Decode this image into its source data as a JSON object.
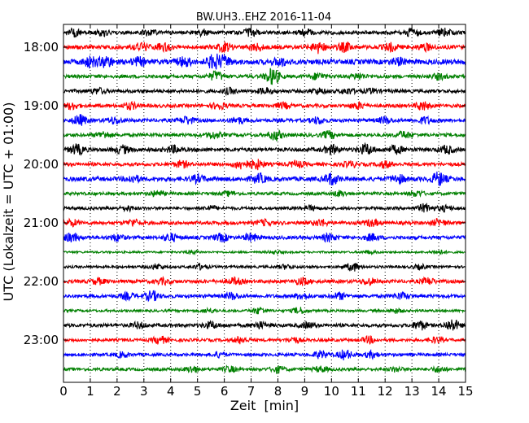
{
  "chart_data": {
    "type": "line",
    "title": "BW.UH3..EHZ 2016-11-04",
    "xlabel": "Zeit  [min]",
    "ylabel": "UTC (Lokalzeit = UTC + 01:00)",
    "xlim": [
      0,
      15
    ],
    "x_ticks": [
      "0",
      "1",
      "2",
      "3",
      "4",
      "5",
      "6",
      "7",
      "8",
      "9",
      "10",
      "11",
      "12",
      "13",
      "14",
      "15"
    ],
    "y_tick_labels": [
      "18:00",
      "19:00",
      "20:00",
      "21:00",
      "22:00",
      "23:00"
    ],
    "grid": "vertical dotted at each minute",
    "trace_colors": [
      "#000000",
      "#ff0000",
      "#0000ff",
      "#008000"
    ],
    "trace_minutes": 15,
    "traces": [
      {
        "start": "17:45",
        "end_min": 15,
        "color_index": 0,
        "base_amp": 0.35,
        "bursts": [
          [
            0.4,
            0.7
          ],
          [
            1.5,
            0.5
          ],
          [
            3.2,
            0.5
          ],
          [
            5.2,
            0.5
          ],
          [
            7.0,
            0.7
          ],
          [
            9.0,
            0.6
          ],
          [
            13.0,
            0.8
          ],
          [
            14.2,
            0.7
          ]
        ]
      },
      {
        "start": "18:00",
        "end_min": 15,
        "color_index": 1,
        "base_amp": 0.4,
        "bursts": [
          [
            2.9,
            0.8
          ],
          [
            3.7,
            0.6
          ],
          [
            6.0,
            0.8
          ],
          [
            7.2,
            0.6
          ],
          [
            9.5,
            1.0
          ],
          [
            10.5,
            0.8
          ],
          [
            12.2,
            0.7
          ],
          [
            13.5,
            0.6
          ]
        ]
      },
      {
        "start": "18:15",
        "end_min": 15,
        "color_index": 2,
        "base_amp": 0.5,
        "bursts": [
          [
            1.0,
            0.9
          ],
          [
            1.6,
            1.0
          ],
          [
            2.8,
            0.7
          ],
          [
            4.5,
            0.8
          ],
          [
            5.6,
            1.2
          ],
          [
            6.0,
            0.9
          ],
          [
            8.1,
            0.7
          ],
          [
            12.5,
            0.6
          ]
        ]
      },
      {
        "start": "18:30",
        "end_min": 15,
        "color_index": 3,
        "base_amp": 0.35,
        "bursts": [
          [
            5.7,
            0.9
          ],
          [
            7.8,
            1.6
          ],
          [
            9.5,
            0.6
          ],
          [
            11.0,
            0.5
          ],
          [
            14.0,
            0.5
          ]
        ]
      },
      {
        "start": "18:45",
        "end_min": 15,
        "color_index": 0,
        "base_amp": 0.35,
        "bursts": [
          [
            1.3,
            0.5
          ],
          [
            6.2,
            0.5
          ],
          [
            7.5,
            0.5
          ],
          [
            9.5,
            0.5
          ],
          [
            10.6,
            0.5
          ],
          [
            11.5,
            0.4
          ]
        ]
      },
      {
        "start": "19:00",
        "end_min": 15,
        "color_index": 1,
        "base_amp": 0.35,
        "bursts": [
          [
            0.3,
            0.6
          ],
          [
            2.5,
            0.6
          ],
          [
            5.8,
            0.6
          ],
          [
            8.2,
            0.5
          ],
          [
            11.0,
            0.6
          ],
          [
            13.4,
            0.8
          ]
        ]
      },
      {
        "start": "19:15",
        "end_min": 15,
        "color_index": 2,
        "base_amp": 0.35,
        "bursts": [
          [
            0.6,
            1.0
          ],
          [
            1.9,
            0.6
          ],
          [
            4.6,
            0.7
          ],
          [
            6.5,
            0.6
          ],
          [
            9.5,
            0.6
          ],
          [
            12.0,
            0.6
          ],
          [
            13.5,
            0.6
          ]
        ]
      },
      {
        "start": "19:30",
        "end_min": 15,
        "color_index": 3,
        "base_amp": 0.35,
        "bursts": [
          [
            1.5,
            0.6
          ],
          [
            5.6,
            0.6
          ],
          [
            7.9,
            0.9
          ],
          [
            9.9,
            0.7
          ],
          [
            12.7,
            0.6
          ]
        ]
      },
      {
        "start": "19:45",
        "end_min": 15,
        "color_index": 0,
        "base_amp": 0.4,
        "bursts": [
          [
            0.5,
            0.9
          ],
          [
            2.2,
            0.7
          ],
          [
            4.1,
            0.6
          ],
          [
            10.0,
            0.8
          ],
          [
            11.3,
            1.0
          ],
          [
            12.4,
            0.7
          ],
          [
            14.3,
            0.7
          ]
        ]
      },
      {
        "start": "20:00",
        "end_min": 15,
        "color_index": 1,
        "base_amp": 0.35,
        "bursts": [
          [
            4.4,
            0.6
          ],
          [
            6.6,
            0.8
          ],
          [
            7.2,
            0.9
          ],
          [
            8.7,
            0.6
          ],
          [
            10.7,
            0.5
          ],
          [
            12.0,
            0.6
          ]
        ]
      },
      {
        "start": "20:15",
        "end_min": 15,
        "color_index": 2,
        "base_amp": 0.45,
        "bursts": [
          [
            2.6,
            0.6
          ],
          [
            5.0,
            0.6
          ],
          [
            7.3,
            0.8
          ],
          [
            10.0,
            1.0
          ],
          [
            12.5,
            0.7
          ],
          [
            14.0,
            1.2
          ]
        ]
      },
      {
        "start": "20:30",
        "end_min": 15,
        "color_index": 3,
        "base_amp": 0.3,
        "bursts": [
          [
            3.5,
            0.5
          ],
          [
            6.2,
            0.4
          ],
          [
            10.3,
            0.5
          ],
          [
            13.2,
            0.5
          ]
        ]
      },
      {
        "start": "20:45",
        "end_min": 15,
        "color_index": 0,
        "base_amp": 0.3,
        "bursts": [
          [
            2.4,
            0.4
          ],
          [
            5.5,
            0.4
          ],
          [
            9.2,
            0.4
          ],
          [
            13.5,
            0.8
          ],
          [
            14.2,
            0.5
          ]
        ]
      },
      {
        "start": "21:00",
        "end_min": 15,
        "color_index": 1,
        "base_amp": 0.35,
        "bursts": [
          [
            0.3,
            0.6
          ],
          [
            2.6,
            0.6
          ],
          [
            7.5,
            0.5
          ],
          [
            9.6,
            0.6
          ],
          [
            11.5,
            0.6
          ],
          [
            14.0,
            0.6
          ]
        ]
      },
      {
        "start": "21:15",
        "end_min": 15,
        "color_index": 2,
        "base_amp": 0.35,
        "bursts": [
          [
            0.3,
            0.8
          ],
          [
            2.0,
            0.6
          ],
          [
            4.0,
            0.7
          ],
          [
            5.9,
            0.7
          ],
          [
            7.0,
            0.7
          ],
          [
            9.9,
            0.7
          ],
          [
            11.5,
            0.6
          ]
        ]
      },
      {
        "start": "21:30",
        "end_min": 15,
        "color_index": 3,
        "base_amp": 0.2,
        "bursts": [
          [
            4.8,
            0.3
          ],
          [
            7.9,
            0.3
          ],
          [
            11.4,
            0.3
          ],
          [
            14.0,
            0.4
          ]
        ]
      },
      {
        "start": "21:45",
        "end_min": 15,
        "color_index": 0,
        "base_amp": 0.25,
        "bursts": [
          [
            3.5,
            0.5
          ],
          [
            5.1,
            0.5
          ],
          [
            8.3,
            0.4
          ],
          [
            10.8,
            0.8
          ],
          [
            13.3,
            0.4
          ]
        ]
      },
      {
        "start": "22:00",
        "end_min": 15,
        "color_index": 1,
        "base_amp": 0.35,
        "bursts": [
          [
            1.3,
            0.5
          ],
          [
            3.7,
            0.5
          ],
          [
            6.4,
            0.6
          ],
          [
            8.9,
            0.6
          ],
          [
            11.4,
            0.6
          ],
          [
            13.6,
            0.6
          ]
        ]
      },
      {
        "start": "22:15",
        "end_min": 15,
        "color_index": 2,
        "base_amp": 0.35,
        "bursts": [
          [
            2.4,
            0.6
          ],
          [
            3.3,
            0.9
          ],
          [
            6.3,
            0.6
          ],
          [
            8.9,
            0.6
          ],
          [
            10.3,
            0.6
          ],
          [
            12.6,
            0.6
          ]
        ]
      },
      {
        "start": "22:30",
        "end_min": 15,
        "color_index": 3,
        "base_amp": 0.25,
        "bursts": [
          [
            5.4,
            0.4
          ],
          [
            7.3,
            0.6
          ],
          [
            8.8,
            0.6
          ],
          [
            12.4,
            0.4
          ]
        ]
      },
      {
        "start": "22:45",
        "end_min": 15,
        "color_index": 0,
        "base_amp": 0.35,
        "bursts": [
          [
            2.8,
            0.5
          ],
          [
            5.5,
            0.6
          ],
          [
            7.3,
            0.6
          ],
          [
            9.1,
            0.5
          ],
          [
            13.3,
            0.8
          ],
          [
            14.5,
            1.1
          ]
        ]
      },
      {
        "start": "23:00",
        "end_min": 15,
        "color_index": 1,
        "base_amp": 0.3,
        "bursts": [
          [
            3.6,
            0.7
          ],
          [
            6.6,
            0.6
          ],
          [
            8.6,
            0.5
          ],
          [
            11.4,
            0.6
          ],
          [
            13.9,
            0.5
          ]
        ]
      },
      {
        "start": "23:15",
        "end_min": 15,
        "color_index": 2,
        "base_amp": 0.3,
        "bursts": [
          [
            2.2,
            0.5
          ],
          [
            5.8,
            0.5
          ],
          [
            9.6,
            0.7
          ],
          [
            10.5,
            0.9
          ],
          [
            11.5,
            0.6
          ]
        ]
      },
      {
        "start": "23:30",
        "end_min": 15,
        "color_index": 3,
        "base_amp": 0.3,
        "bursts": [
          [
            4.8,
            0.6
          ],
          [
            6.2,
            0.5
          ],
          [
            8.0,
            0.6
          ],
          [
            9.6,
            0.5
          ],
          [
            12.4,
            0.4
          ],
          [
            14.0,
            0.5
          ]
        ]
      }
    ]
  }
}
